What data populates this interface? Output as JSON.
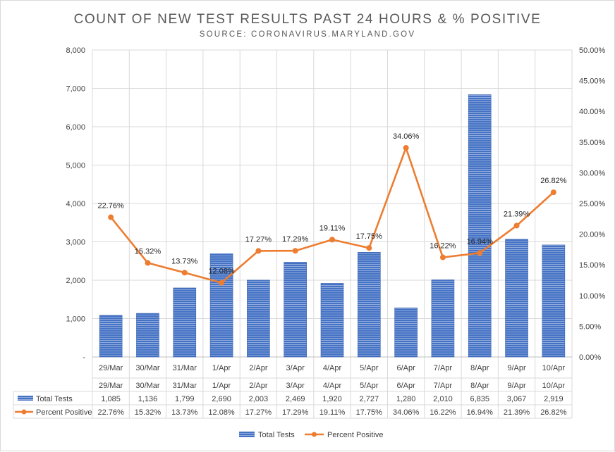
{
  "chart_data": {
    "type": "bar",
    "title": "COUNT OF NEW TEST RESULTS PAST 24 HOURS & % POSITIVE",
    "subtitle": "SOURCE: CORONAVIRUS.MARYLAND.GOV",
    "categories": [
      "29/Mar",
      "30/Mar",
      "31/Mar",
      "1/Apr",
      "2/Apr",
      "3/Apr",
      "4/Apr",
      "5/Apr",
      "6/Apr",
      "7/Apr",
      "8/Apr",
      "9/Apr",
      "10/Apr"
    ],
    "series": [
      {
        "name": "Total Tests",
        "type": "bar",
        "axis": "left",
        "color": "#4472c4",
        "values": [
          1085,
          1136,
          1799,
          2690,
          2003,
          2469,
          1920,
          2727,
          1280,
          2010,
          6835,
          3067,
          2919
        ],
        "labels": [
          "1,085",
          "1,136",
          "1,799",
          "2,690",
          "2,003",
          "2,469",
          "1,920",
          "2,727",
          "1,280",
          "2,010",
          "6,835",
          "3,067",
          "2,919"
        ]
      },
      {
        "name": "Percent Positive",
        "type": "line",
        "axis": "right",
        "color": "#ed7d31",
        "values": [
          22.76,
          15.32,
          13.73,
          12.08,
          17.27,
          17.29,
          19.11,
          17.75,
          34.06,
          16.22,
          16.94,
          21.39,
          26.82
        ],
        "labels": [
          "22.76%",
          "15.32%",
          "13.73%",
          "12.08%",
          "17.27%",
          "17.29%",
          "19.11%",
          "17.75%",
          "34.06%",
          "16.22%",
          "16.94%",
          "21.39%",
          "26.82%"
        ]
      }
    ],
    "y_left": {
      "min": 0,
      "max": 8000,
      "step": 1000,
      "ticks": [
        "-",
        "1,000",
        "2,000",
        "3,000",
        "4,000",
        "5,000",
        "6,000",
        "7,000",
        "8,000"
      ]
    },
    "y_right": {
      "min": 0,
      "max": 50,
      "step": 5,
      "ticks": [
        "0.00%",
        "5.00%",
        "10.00%",
        "15.00%",
        "20.00%",
        "25.00%",
        "30.00%",
        "35.00%",
        "40.00%",
        "45.00%",
        "50.00%"
      ]
    },
    "grid": true,
    "data_table": true,
    "legend_position": "bottom"
  }
}
